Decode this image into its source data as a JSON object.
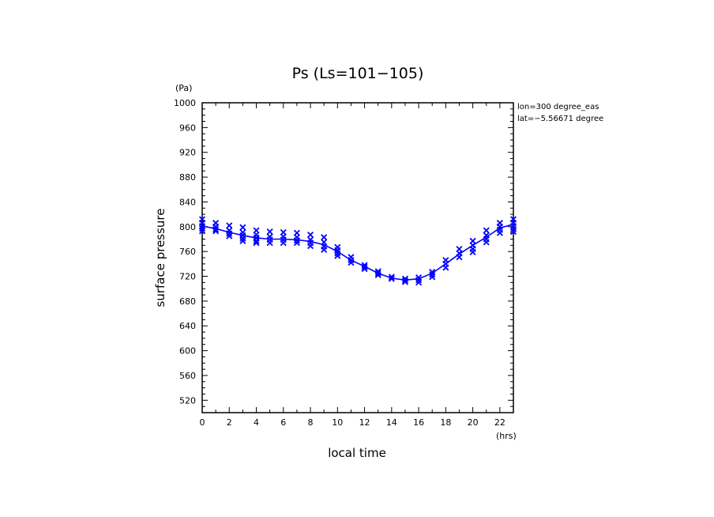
{
  "chart_data": {
    "type": "scatter",
    "title": "Ps (Ls=101−105)",
    "xlabel": "local time",
    "ylabel": "surface pressure",
    "x_unit": "(hrs)",
    "y_unit": "(Pa)",
    "xlim": [
      0,
      23
    ],
    "ylim": [
      500,
      1000
    ],
    "x_ticks": [
      0,
      2,
      4,
      6,
      8,
      10,
      12,
      14,
      16,
      18,
      20,
      22
    ],
    "y_ticks": [
      520,
      560,
      600,
      640,
      680,
      720,
      760,
      800,
      840,
      880,
      920,
      960,
      1000
    ],
    "grid": false,
    "color": "#0000ff",
    "annotations": [
      "lon=300 degree_eas",
      "lat=−5.56671 degree"
    ],
    "series": [
      {
        "style": "line",
        "x": [
          0,
          1,
          2,
          3,
          4,
          5,
          6,
          7,
          8,
          9,
          10,
          11,
          12,
          13,
          14,
          15,
          16,
          17,
          18,
          19,
          20,
          21,
          22,
          23
        ],
        "values": [
          801,
          797,
          791,
          786,
          782,
          780,
          780,
          779,
          776,
          771,
          760,
          746,
          736,
          725,
          717,
          714,
          716,
          725,
          740,
          756,
          770,
          783,
          798,
          804
        ]
      },
      {
        "style": "markers",
        "points": [
          [
            0,
            812
          ],
          [
            0,
            806
          ],
          [
            0,
            801
          ],
          [
            0,
            797
          ],
          [
            0,
            793
          ],
          [
            1,
            806
          ],
          [
            1,
            800
          ],
          [
            1,
            796
          ],
          [
            1,
            793
          ],
          [
            2,
            802
          ],
          [
            2,
            794
          ],
          [
            2,
            789
          ],
          [
            2,
            785
          ],
          [
            3,
            799
          ],
          [
            3,
            791
          ],
          [
            3,
            786
          ],
          [
            3,
            781
          ],
          [
            3,
            777
          ],
          [
            4,
            794
          ],
          [
            4,
            787
          ],
          [
            4,
            782
          ],
          [
            4,
            777
          ],
          [
            4,
            774
          ],
          [
            5,
            792
          ],
          [
            5,
            784
          ],
          [
            5,
            779
          ],
          [
            5,
            774
          ],
          [
            6,
            791
          ],
          [
            6,
            784
          ],
          [
            6,
            779
          ],
          [
            6,
            774
          ],
          [
            7,
            790
          ],
          [
            7,
            783
          ],
          [
            7,
            778
          ],
          [
            7,
            774
          ],
          [
            8,
            787
          ],
          [
            8,
            779
          ],
          [
            8,
            774
          ],
          [
            8,
            769
          ],
          [
            9,
            783
          ],
          [
            9,
            775
          ],
          [
            9,
            768
          ],
          [
            9,
            763
          ],
          [
            10,
            767
          ],
          [
            10,
            762
          ],
          [
            10,
            757
          ],
          [
            10,
            753
          ],
          [
            11,
            751
          ],
          [
            11,
            746
          ],
          [
            11,
            742
          ],
          [
            12,
            738
          ],
          [
            12,
            735
          ],
          [
            12,
            732
          ],
          [
            13,
            728
          ],
          [
            13,
            725
          ],
          [
            13,
            722
          ],
          [
            14,
            719
          ],
          [
            14,
            716
          ],
          [
            15,
            716
          ],
          [
            15,
            713
          ],
          [
            15,
            711
          ],
          [
            16,
            718
          ],
          [
            16,
            714
          ],
          [
            16,
            710
          ],
          [
            17,
            727
          ],
          [
            17,
            723
          ],
          [
            17,
            719
          ],
          [
            18,
            746
          ],
          [
            18,
            740
          ],
          [
            18,
            734
          ],
          [
            19,
            764
          ],
          [
            19,
            757
          ],
          [
            19,
            751
          ],
          [
            20,
            777
          ],
          [
            20,
            770
          ],
          [
            20,
            764
          ],
          [
            20,
            759
          ],
          [
            21,
            794
          ],
          [
            21,
            786
          ],
          [
            21,
            780
          ],
          [
            21,
            775
          ],
          [
            22,
            806
          ],
          [
            22,
            800
          ],
          [
            22,
            795
          ],
          [
            22,
            790
          ],
          [
            23,
            812
          ],
          [
            23,
            806
          ],
          [
            23,
            801
          ],
          [
            23,
            796
          ],
          [
            23,
            792
          ]
        ]
      }
    ]
  }
}
